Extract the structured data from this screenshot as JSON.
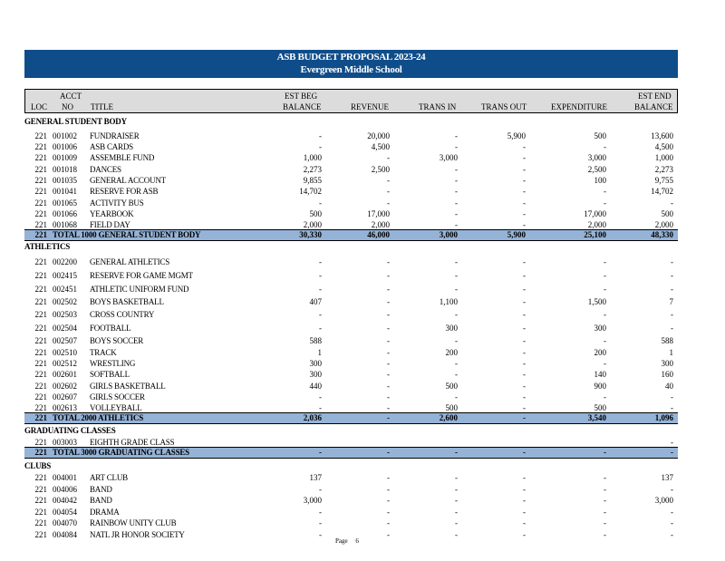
{
  "header": {
    "title": "ASB BUDGET PROPOSAL 2023-24",
    "school": "Evergreen Middle School"
  },
  "columns": {
    "loc": "LOC",
    "acct_top": "ACCT",
    "acct_bottom": "NO",
    "title": "TITLE",
    "beg_top": "EST BEG",
    "beg_bottom": "BALANCE",
    "revenue": "REVENUE",
    "trans_in": "TRANS IN",
    "trans_out": "TRANS OUT",
    "expenditure": "EXPENDITURE",
    "end_top": "EST END",
    "end_bottom": "BALANCE"
  },
  "sections": [
    {
      "name": "GENERAL STUDENT BODY",
      "rows": [
        {
          "loc": "221",
          "acct": "001002",
          "title": "FUNDRAISER",
          "beg": "-",
          "rev": "20,000",
          "tin": "-",
          "tout": "5,900",
          "exp": "500",
          "end": "13,600"
        },
        {
          "loc": "221",
          "acct": "001006",
          "title": "ASB CARDS",
          "beg": "-",
          "rev": "4,500",
          "tin": "-",
          "tout": "-",
          "exp": "-",
          "end": "4,500"
        },
        {
          "loc": "221",
          "acct": "001009",
          "title": "ASSEMBLE FUND",
          "beg": "1,000",
          "rev": "-",
          "tin": "3,000",
          "tout": "-",
          "exp": "3,000",
          "end": "1,000"
        },
        {
          "loc": "221",
          "acct": "001018",
          "title": "DANCES",
          "beg": "2,273",
          "rev": "2,500",
          "tin": "-",
          "tout": "-",
          "exp": "2,500",
          "end": "2,273"
        },
        {
          "loc": "221",
          "acct": "001035",
          "title": "GENERAL ACCOUNT",
          "beg": "9,855",
          "rev": "-",
          "tin": "-",
          "tout": "-",
          "exp": "100",
          "end": "9,755"
        },
        {
          "loc": "221",
          "acct": "001041",
          "title": "RESERVE FOR ASB",
          "beg": "14,702",
          "rev": "-",
          "tin": "-",
          "tout": "-",
          "exp": "-",
          "end": "14,702"
        },
        {
          "loc": "221",
          "acct": "001065",
          "title": "ACTIVITY BUS",
          "beg": "-",
          "rev": "-",
          "tin": "-",
          "tout": "-",
          "exp": "-",
          "end": "-"
        },
        {
          "loc": "221",
          "acct": "001066",
          "title": "YEARBOOK",
          "beg": "500",
          "rev": "17,000",
          "tin": "-",
          "tout": "-",
          "exp": "17,000",
          "end": "500"
        },
        {
          "loc": "221",
          "acct": "001068",
          "title": "FIELD DAY",
          "beg": "2,000",
          "rev": "2,000",
          "tin": "-",
          "tout": "-",
          "exp": "2,000",
          "end": "2,000"
        }
      ],
      "total": {
        "loc": "221",
        "label": "TOTAL 1000 GENERAL STUDENT BODY",
        "beg": "30,330",
        "rev": "46,000",
        "tin": "3,000",
        "tout": "5,900",
        "exp": "25,100",
        "end": "48,330"
      }
    },
    {
      "name": "ATHLETICS",
      "rows": [
        {
          "loc": "221",
          "acct": "002200",
          "title": "GENERAL ATHLETICS",
          "beg": "-",
          "rev": "-",
          "tin": "-",
          "tout": "-",
          "exp": "-",
          "end": "-"
        },
        {
          "loc": "221",
          "acct": "002415",
          "title": "RESERVE FOR GAME MGMT",
          "beg": "-",
          "rev": "-",
          "tin": "-",
          "tout": "-",
          "exp": "-",
          "end": "-"
        },
        {
          "loc": "221",
          "acct": "002451",
          "title": "ATHLETIC UNIFORM FUND",
          "beg": "-",
          "rev": "-",
          "tin": "-",
          "tout": "-",
          "exp": "-",
          "end": "-"
        },
        {
          "loc": "221",
          "acct": "002502",
          "title": "BOYS BASKETBALL",
          "beg": "407",
          "rev": "-",
          "tin": "1,100",
          "tout": "-",
          "exp": "1,500",
          "end": "7"
        },
        {
          "loc": "221",
          "acct": "002503",
          "title": "CROSS COUNTRY",
          "beg": "-",
          "rev": "-",
          "tin": "-",
          "tout": "-",
          "exp": "-",
          "end": "-"
        },
        {
          "loc": "221",
          "acct": "002504",
          "title": "FOOTBALL",
          "beg": "-",
          "rev": "-",
          "tin": "300",
          "tout": "-",
          "exp": "300",
          "end": "-"
        },
        {
          "loc": "221",
          "acct": "002507",
          "title": "BOYS SOCCER",
          "beg": "588",
          "rev": "-",
          "tin": "-",
          "tout": "-",
          "exp": "-",
          "end": "588"
        },
        {
          "loc": "221",
          "acct": "002510",
          "title": "TRACK",
          "beg": "1",
          "rev": "-",
          "tin": "200",
          "tout": "-",
          "exp": "200",
          "end": "1"
        },
        {
          "loc": "221",
          "acct": "002512",
          "title": "WRESTLING",
          "beg": "300",
          "rev": "-",
          "tin": "-",
          "tout": "-",
          "exp": "-",
          "end": "300"
        },
        {
          "loc": "221",
          "acct": "002601",
          "title": "SOFTBALL",
          "beg": "300",
          "rev": "-",
          "tin": "-",
          "tout": "-",
          "exp": "140",
          "end": "160"
        },
        {
          "loc": "221",
          "acct": "002602",
          "title": "GIRLS BASKETBALL",
          "beg": "440",
          "rev": "-",
          "tin": "500",
          "tout": "-",
          "exp": "900",
          "end": "40"
        },
        {
          "loc": "221",
          "acct": "002607",
          "title": "GIRLS SOCCER",
          "beg": "-",
          "rev": "-",
          "tin": "-",
          "tout": "-",
          "exp": "-",
          "end": "-"
        },
        {
          "loc": "221",
          "acct": "002613",
          "title": "VOLLEYBALL",
          "beg": "-",
          "rev": "-",
          "tin": "500",
          "tout": "-",
          "exp": "500",
          "end": "-"
        }
      ],
      "total": {
        "loc": "221",
        "label": "TOTAL 2000 ATHLETICS",
        "beg": "2,036",
        "rev": "-",
        "tin": "2,600",
        "tout": "-",
        "exp": "3,540",
        "end": "1,096"
      }
    },
    {
      "name": "GRADUATING CLASSES",
      "rows": [
        {
          "loc": "221",
          "acct": "003003",
          "title": "EIGHTH GRADE CLASS",
          "beg": "",
          "rev": "",
          "tin": "",
          "tout": "",
          "exp": "",
          "end": "-"
        }
      ],
      "total": {
        "loc": "221",
        "label": "TOTAL 3000 GRADUATING CLASSES",
        "beg": "-",
        "rev": "-",
        "tin": "-",
        "tout": "-",
        "exp": "-",
        "end": "-"
      }
    },
    {
      "name": "CLUBS",
      "rows": [
        {
          "loc": "221",
          "acct": "004001",
          "title": "ART CLUB",
          "beg": "137",
          "rev": "-",
          "tin": "-",
          "tout": "-",
          "exp": "-",
          "end": "137"
        },
        {
          "loc": "221",
          "acct": "004006",
          "title": "BAND",
          "beg": "-",
          "rev": "-",
          "tin": "-",
          "tout": "-",
          "exp": "-",
          "end": "-"
        },
        {
          "loc": "221",
          "acct": "004042",
          "title": "BAND",
          "beg": "3,000",
          "rev": "-",
          "tin": "-",
          "tout": "-",
          "exp": "-",
          "end": "3,000"
        },
        {
          "loc": "221",
          "acct": "004054",
          "title": "DRAMA",
          "beg": "-",
          "rev": "-",
          "tin": "-",
          "tout": "-",
          "exp": "-",
          "end": "-"
        },
        {
          "loc": "221",
          "acct": "004070",
          "title": "RAINBOW UNITY CLUB",
          "beg": "-",
          "rev": "-",
          "tin": "-",
          "tout": "-",
          "exp": "-",
          "end": "-"
        },
        {
          "loc": "221",
          "acct": "004084",
          "title": "NATL JR HONOR SOCIETY",
          "beg": "-",
          "rev": "-",
          "tin": "-",
          "tout": "-",
          "exp": "-",
          "end": "-"
        }
      ]
    }
  ],
  "footer": {
    "page_label": "Page",
    "page_number": "6"
  }
}
